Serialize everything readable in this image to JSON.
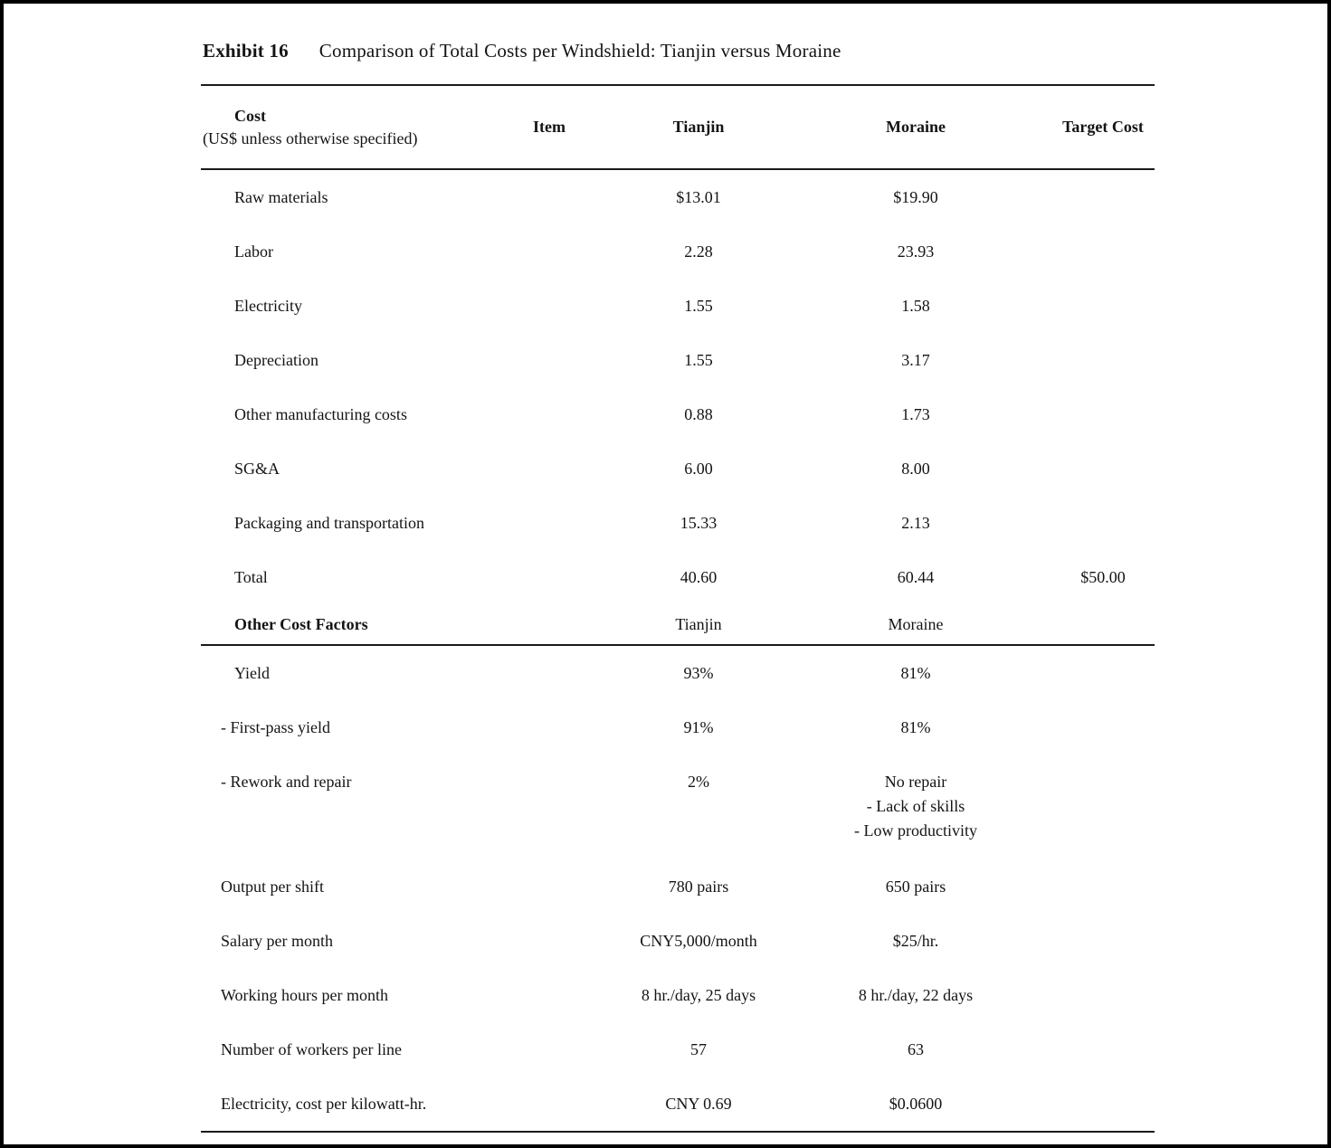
{
  "exhibit": {
    "label": "Exhibit 16",
    "title": "Comparison of Total Costs per Windshield: Tianjin versus Moraine"
  },
  "table": {
    "header": {
      "cost": "Cost",
      "cost_note": "(US$ unless otherwise specified)",
      "item": "Item",
      "tianjin": "Tianjin",
      "moraine": "Moraine",
      "target": "Target Cost"
    },
    "cost_rows": [
      {
        "label": "Raw materials",
        "tianjin": "$13.01",
        "moraine": "$19.90",
        "target": ""
      },
      {
        "label": "Labor",
        "tianjin": "2.28",
        "moraine": "23.93",
        "target": ""
      },
      {
        "label": "Electricity",
        "tianjin": "1.55",
        "moraine": "1.58",
        "target": ""
      },
      {
        "label": "Depreciation",
        "tianjin": "1.55",
        "moraine": "3.17",
        "target": ""
      },
      {
        "label": "Other manufacturing costs",
        "tianjin": "0.88",
        "moraine": "1.73",
        "target": ""
      },
      {
        "label": "SG&A",
        "tianjin": "6.00",
        "moraine": "8.00",
        "target": ""
      },
      {
        "label": "Packaging and transportation",
        "tianjin": "15.33",
        "moraine": "2.13",
        "target": ""
      },
      {
        "label": "Total",
        "tianjin": "40.60",
        "moraine": "60.44",
        "target": "$50.00"
      }
    ],
    "section": {
      "label": "Other Cost Factors",
      "tianjin": "Tianjin",
      "moraine": "Moraine"
    },
    "factor_rows": [
      {
        "label": "Yield",
        "tianjin": "93%",
        "moraine": "81%"
      },
      {
        "label": "- First-pass yield",
        "tianjin": "91%",
        "moraine": "81%"
      },
      {
        "label": "- Rework and repair",
        "tianjin": "2%",
        "moraine": "No repair\n- Lack of skills\n- Low productivity"
      },
      {
        "label": "Output per shift",
        "tianjin": "780 pairs",
        "moraine": "650 pairs"
      },
      {
        "label": "Salary per month",
        "tianjin": "CNY5,000/month",
        "moraine": "$25/hr."
      },
      {
        "label": "Working hours per month",
        "tianjin": "8 hr./day, 25 days",
        "moraine": "8 hr./day, 22 days"
      },
      {
        "label": "Number of workers per line",
        "tianjin": "57",
        "moraine": "63"
      },
      {
        "label": "Electricity, cost per kilowatt-hr.",
        "tianjin": "CNY 0.69",
        "moraine": "$0.0600"
      }
    ]
  }
}
